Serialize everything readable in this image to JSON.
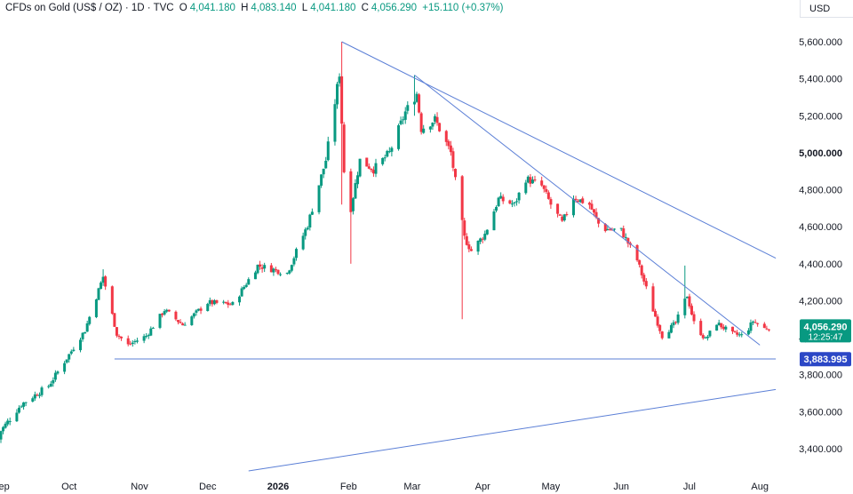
{
  "legend": {
    "symbol": "CFDs on Gold (US$ / OZ) · 1D · TVC",
    "o_key": "O",
    "o_val": "4,041.180",
    "h_key": "H",
    "h_val": "4,083.140",
    "l_key": "L",
    "l_val": "4,041.180",
    "c_key": "C",
    "c_val": "4,056.290",
    "change": "+15.110 (+0.37%)"
  },
  "currency_button": "USD",
  "price_tag": {
    "price": "4,056.290",
    "countdown": "12:25:47"
  },
  "level_tag": {
    "price": "3,883.995"
  },
  "colors": {
    "up": "#089981",
    "down": "#f23645",
    "line": "#5b7fd6",
    "tag_up": "#089981",
    "tag_line": "#2b47c6",
    "axis_text": "#131722"
  },
  "chart_data": {
    "type": "candlestick",
    "title": "CFDs on Gold (US$ / OZ) · 1D · TVC",
    "y_axis": {
      "ticks": [
        "3,400.000",
        "3,600.000",
        "3,800.000",
        "4,000.000",
        "4,200.000",
        "4,400.000",
        "4,600.000",
        "4,800.000",
        "5,000.000",
        "5,200.000",
        "5,400.000",
        "5,600.000"
      ],
      "range": [
        3300,
        5720
      ],
      "unit": "USD"
    },
    "x_axis": {
      "ticks": [
        "Sep",
        "Oct",
        "Nov",
        "Dec",
        "2026",
        "Feb",
        "Mar",
        "Apr",
        "May",
        "Jun",
        "Jul",
        "Aug"
      ],
      "range": [
        "2025-09-01",
        "2026-08-08"
      ]
    },
    "last_close": 4056.29,
    "horizontal_level": 3883.995,
    "trendlines": [
      {
        "p1": [
          "2026-01-29",
          5600
        ],
        "p2": [
          "2026-08-08",
          4430
        ]
      },
      {
        "p1": [
          "2026-03-02",
          5420
        ],
        "p2": [
          "2026-08-01",
          3960
        ]
      },
      {
        "p1": [
          "2025-10-21",
          3885
        ],
        "p2": [
          "2026-08-08",
          3885
        ]
      },
      {
        "p1": [
          "2025-12-19",
          3280
        ],
        "p2": [
          "2026-08-08",
          3720
        ]
      }
    ],
    "anchors": [
      [
        "2025-08-29",
        3450
      ],
      [
        "2025-09-10",
        3640
      ],
      [
        "2025-09-22",
        3740
      ],
      [
        "2025-10-08",
        4040
      ],
      [
        "2025-10-16",
        4330
      ],
      [
        "2025-10-22",
        4020
      ],
      [
        "2025-10-27",
        3960
      ],
      [
        "2025-10-30",
        3980
      ],
      [
        "2025-11-04",
        4010
      ],
      [
        "2025-11-12",
        4150
      ],
      [
        "2025-11-20",
        4070
      ],
      [
        "2025-12-01",
        4190
      ],
      [
        "2025-12-12",
        4180
      ],
      [
        "2025-12-23",
        4390
      ],
      [
        "2026-01-05",
        4350
      ],
      [
        "2026-01-14",
        4610
      ],
      [
        "2026-01-22",
        4960
      ],
      [
        "2026-01-28",
        5430
      ],
      [
        "2026-01-30",
        4900
      ],
      [
        "2026-02-02",
        4700
      ],
      [
        "2026-02-06",
        4960
      ],
      [
        "2026-02-12",
        4910
      ],
      [
        "2026-02-19",
        5000
      ],
      [
        "2026-02-26",
        5220
      ],
      [
        "2026-03-03",
        5320
      ],
      [
        "2026-03-05",
        5130
      ],
      [
        "2026-03-11",
        5180
      ],
      [
        "2026-03-18",
        5000
      ],
      [
        "2026-03-24",
        4540
      ],
      [
        "2026-03-27",
        4470
      ],
      [
        "2026-04-02",
        4560
      ],
      [
        "2026-04-08",
        4750
      ],
      [
        "2026-04-15",
        4720
      ],
      [
        "2026-04-20",
        4860
      ],
      [
        "2026-04-27",
        4820
      ],
      [
        "2026-05-01",
        4720
      ],
      [
        "2026-05-06",
        4620
      ],
      [
        "2026-05-11",
        4760
      ],
      [
        "2026-05-18",
        4720
      ],
      [
        "2026-05-23",
        4590
      ],
      [
        "2026-06-01",
        4580
      ],
      [
        "2026-06-08",
        4420
      ],
      [
        "2026-06-15",
        4150
      ],
      [
        "2026-06-19",
        4010
      ],
      [
        "2026-06-25",
        4080
      ],
      [
        "2026-06-30",
        4230
      ],
      [
        "2026-07-03",
        4080
      ],
      [
        "2026-07-08",
        3990
      ],
      [
        "2026-07-13",
        4080
      ],
      [
        "2026-07-20",
        4020
      ],
      [
        "2026-07-25",
        4010
      ],
      [
        "2026-07-29",
        4090
      ],
      [
        "2026-08-03",
        4050
      ],
      [
        "2026-08-05",
        4056
      ]
    ],
    "wicks": [
      [
        "2025-10-16",
        4370,
        4280
      ],
      [
        "2026-01-29",
        5600,
        4720
      ],
      [
        "2026-02-02",
        4850,
        4400
      ],
      [
        "2026-03-02",
        5420,
        5200
      ],
      [
        "2026-03-23",
        4650,
        4100
      ],
      [
        "2026-06-29",
        4390,
        4180
      ]
    ]
  }
}
